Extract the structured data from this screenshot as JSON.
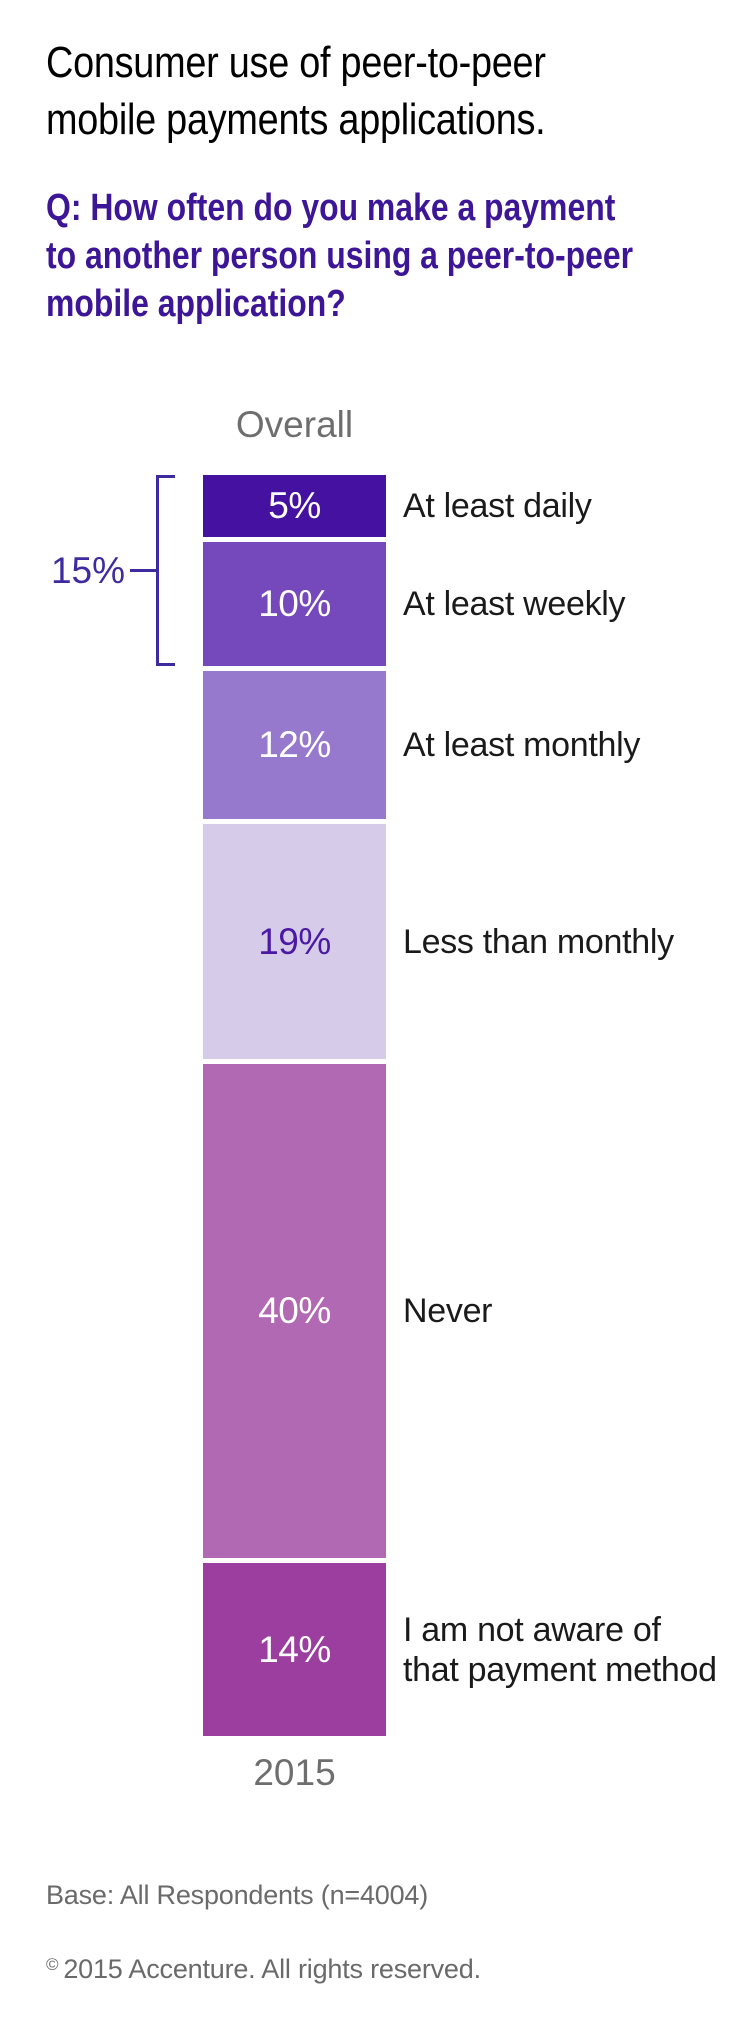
{
  "page": {
    "background": "#FFFFFF"
  },
  "title": {
    "lines": [
      "Consumer use of peer-to-peer",
      "mobile payments applications."
    ]
  },
  "question": {
    "lines": [
      "Q: How often do you make a payment",
      "to another person using a peer-to-peer",
      "mobile application?"
    ]
  },
  "chart": {
    "column_header": "Overall",
    "x_label": "2015",
    "bracket_label": "15%"
  },
  "chart_data": {
    "type": "bar",
    "variant": "single-column-stacked",
    "title": "Consumer use of peer-to-peer mobile payments applications.",
    "question": "Q: How often do you make a payment to another person using a peer-to-peer mobile application?",
    "column_header": "Overall",
    "x_tick_labels": [
      "2015"
    ],
    "unit": "%",
    "categories": [
      "At least daily",
      "At least weekly",
      "At least monthly",
      "Less than monthly",
      "Never",
      "I am not aware of that payment method"
    ],
    "category_labels": [
      "At least daily",
      "At least weekly",
      "At least monthly",
      "Less than monthly",
      "Never",
      "I am not aware of\nthat payment method"
    ],
    "values": [
      5,
      10,
      12,
      19,
      40,
      14
    ],
    "value_labels": [
      "5%",
      "10%",
      "12%",
      "19%",
      "40%",
      "14%"
    ],
    "segment_colors": [
      "#4511A0",
      "#7549BC",
      "#9678CC",
      "#D6CCEA",
      "#B169B4",
      "#9C3DA0"
    ],
    "value_label_colors": [
      "#FFFFFF",
      "#FFFFFF",
      "#FFFFFF",
      "#4A1AA3",
      "#FFFFFF",
      "#FFFFFF"
    ],
    "bracket": {
      "label": "15%",
      "covers_categories": [
        "At least daily",
        "At least weekly"
      ]
    },
    "legend": "none",
    "grid": false
  },
  "theme": {
    "title_color": "#000000",
    "question_color": "#3D1697",
    "bracket_color": "#3E2B9F",
    "muted_color": "#6E6E6E",
    "footer_color": "#6A6A6A",
    "category_label_color": "#1A1A1A"
  },
  "footer": {
    "base_note": "Base: All Respondents (n=4004)",
    "copyright_symbol": "©",
    "copyright_text": "2015 Accenture. All rights reserved."
  }
}
